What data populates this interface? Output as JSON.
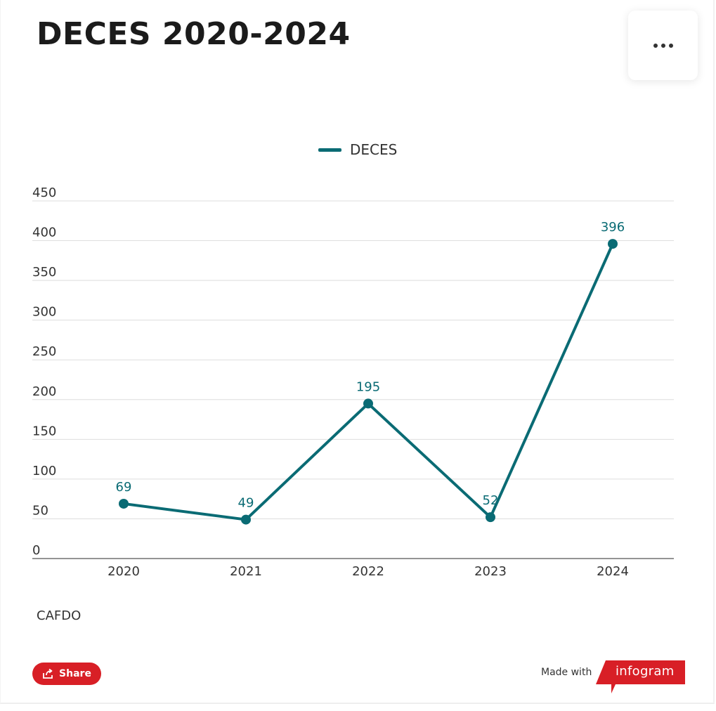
{
  "title": "DECES 2020-2024",
  "menu": {
    "icon": "more-horizontal-icon"
  },
  "legend": {
    "label": "DECES",
    "color": "#0a6b74"
  },
  "source": "CAFDO",
  "footer": {
    "share_label": "Share",
    "share_icon": "share-icon",
    "made_with": "Made with",
    "brand": "infogram",
    "brand_color": "#d81f26"
  },
  "chart_data": {
    "type": "line",
    "categories": [
      "2020",
      "2021",
      "2022",
      "2023",
      "2024"
    ],
    "series": [
      {
        "name": "DECES",
        "values": [
          69,
          49,
          195,
          52,
          396
        ],
        "color": "#0a6b74"
      }
    ],
    "ylim": [
      0,
      450
    ],
    "yticks": [
      0,
      50,
      100,
      150,
      200,
      250,
      300,
      350,
      400,
      450
    ],
    "grid": true,
    "legend_position": "top-center",
    "data_labels": true
  }
}
